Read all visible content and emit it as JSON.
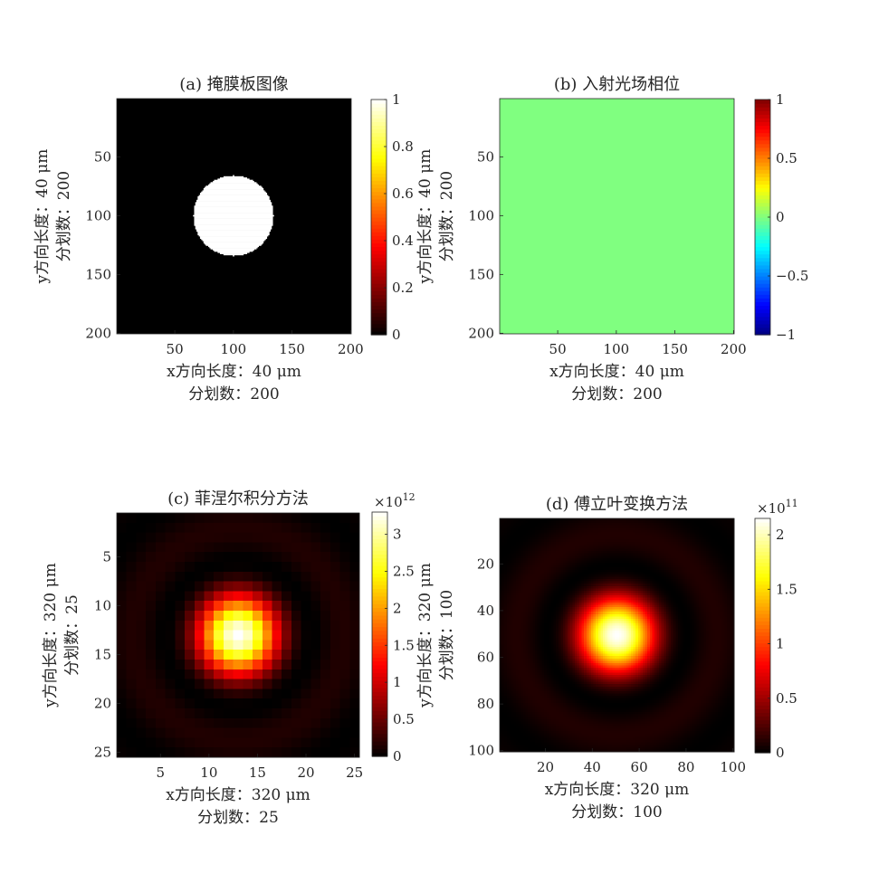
{
  "chart_data": [
    {
      "type": "heatmap",
      "title": "(a) 掩膜板图像",
      "xlabel": [
        "x方向长度：40 μm",
        "分划数：200"
      ],
      "ylabel": [
        "y方向长度：40 μm",
        "分划数：200"
      ],
      "grid_size": 200,
      "xlim": [
        0.5,
        200.5
      ],
      "ylim": [
        0.5,
        200.5
      ],
      "xticks": [
        50,
        100,
        150,
        200
      ],
      "yticks": [
        50,
        100,
        150,
        200
      ],
      "colormap": "hot",
      "clim": [
        0,
        1
      ],
      "colorbar_ticks": [
        0,
        0.2,
        0.4,
        0.6,
        0.8,
        1
      ],
      "colorbar_exponent": "",
      "data_description": "binary circular aperture",
      "circle_center": [
        100,
        100
      ],
      "circle_radius": 34,
      "inside_value": 1,
      "outside_value": 0
    },
    {
      "type": "heatmap",
      "title": "(b) 入射光场相位",
      "xlabel": [
        "x方向长度：40 μm",
        "分划数：200"
      ],
      "ylabel": [
        "y方向长度：40 μm",
        "分划数：200"
      ],
      "grid_size": 200,
      "xlim": [
        0.5,
        200.5
      ],
      "ylim": [
        0.5,
        200.5
      ],
      "xticks": [
        50,
        100,
        150,
        200
      ],
      "yticks": [
        50,
        100,
        150,
        200
      ],
      "colormap": "jet",
      "clim": [
        -1,
        1
      ],
      "colorbar_ticks": [
        -1,
        -0.5,
        0,
        0.5,
        1
      ],
      "colorbar_exponent": "",
      "uniform_value": 0
    },
    {
      "type": "heatmap",
      "title": "(c) 菲涅尔积分方法",
      "xlabel": [
        "x方向长度：320 μm",
        "分划数：25"
      ],
      "ylabel": [
        "y方向长度：320 μm",
        "分划数：25"
      ],
      "grid_size": 25,
      "xlim": [
        0.5,
        25.5
      ],
      "ylim": [
        0.5,
        25.5
      ],
      "xticks": [
        5,
        10,
        15,
        20,
        25
      ],
      "yticks": [
        5,
        10,
        15,
        20,
        25
      ],
      "colormap": "hot",
      "clim": [
        0,
        3.3
      ],
      "colorbar_ticks": [
        0,
        0.5,
        1,
        1.5,
        2,
        2.5,
        3
      ],
      "colorbar_exponent": "12",
      "center": [
        13,
        13
      ],
      "peak": 3.3,
      "first_dark_ring_radius": 7.6
    },
    {
      "type": "heatmap",
      "title": "(d) 傅立叶变换方法",
      "xlabel": [
        "x方向长度：320 μm",
        "分划数：100"
      ],
      "ylabel": [
        "y方向长度：320 μm",
        "分划数：100"
      ],
      "grid_size": 100,
      "xlim": [
        0.5,
        100.5
      ],
      "ylim": [
        0.5,
        100.5
      ],
      "xticks": [
        20,
        40,
        60,
        80,
        100
      ],
      "yticks": [
        20,
        40,
        60,
        80,
        100
      ],
      "colormap": "hot",
      "clim": [
        0,
        2.15
      ],
      "colorbar_ticks": [
        0,
        0.5,
        1,
        1.5,
        2
      ],
      "colorbar_exponent": "11",
      "center": [
        50.5,
        50.5
      ],
      "peak": 2.15,
      "first_dark_ring_radius": 30
    }
  ]
}
